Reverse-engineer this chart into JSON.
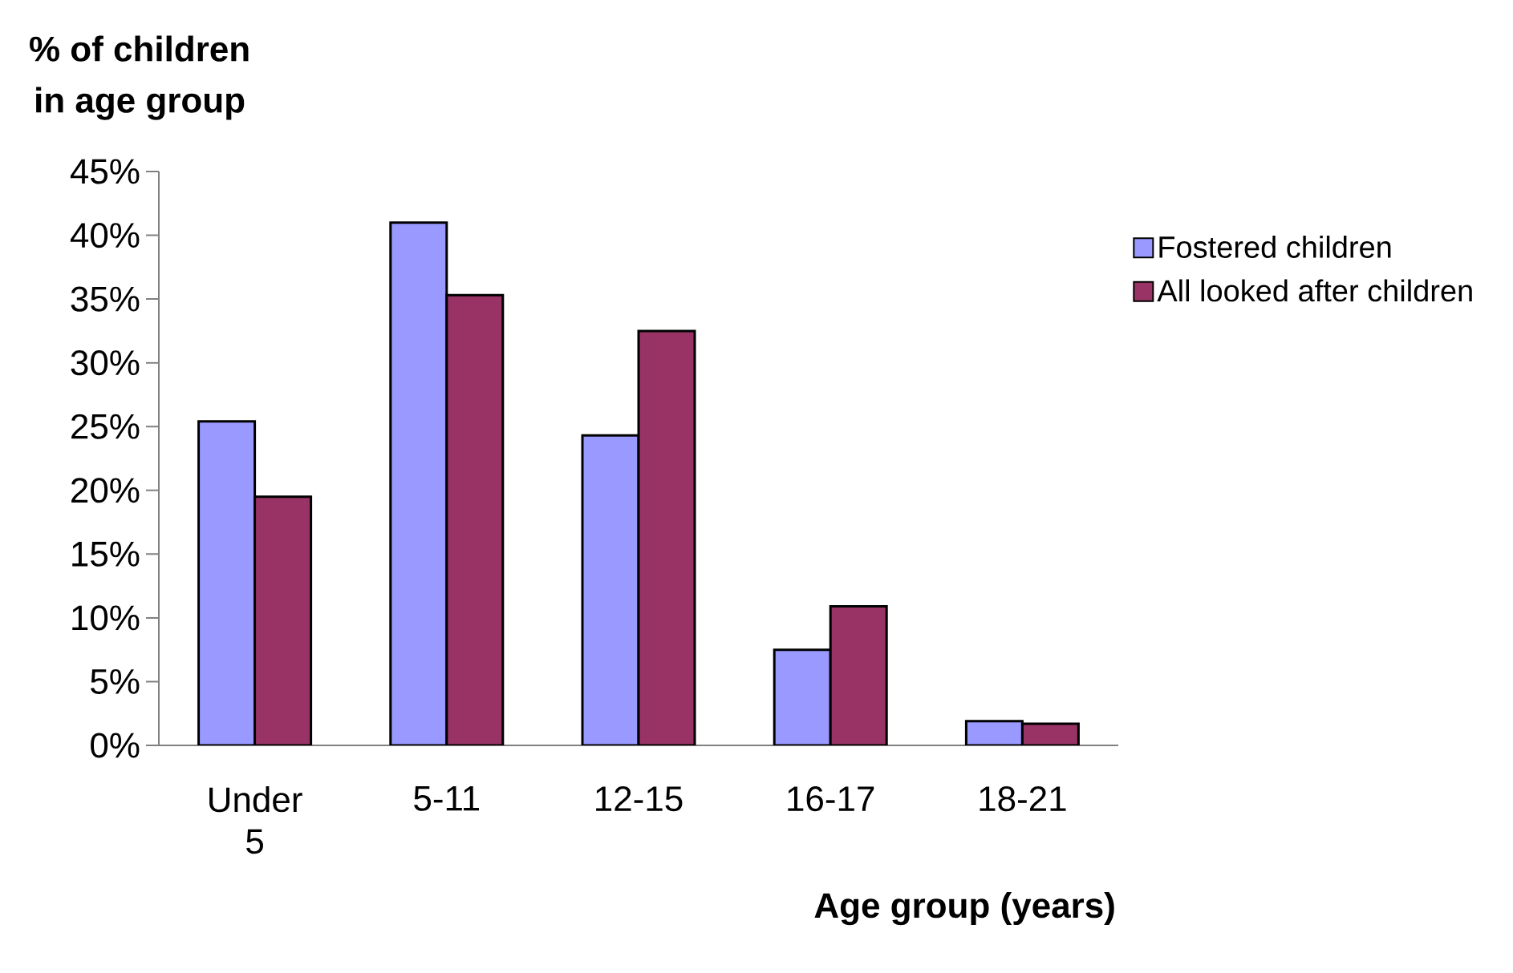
{
  "chart_data": {
    "type": "bar",
    "xlabel": "Age group (years)",
    "ylabel": "% of children\nin age group",
    "categories": [
      "Under 5",
      "5-11",
      "12-15",
      "16-17",
      "18-21"
    ],
    "series": [
      {
        "name": "Fostered children",
        "color": "#9999ff",
        "values": [
          25.4,
          41.0,
          24.3,
          7.5,
          1.9
        ]
      },
      {
        "name": "All looked after children",
        "color": "#993366",
        "values": [
          19.5,
          35.3,
          32.5,
          10.9,
          1.7
        ]
      }
    ],
    "ylim": [
      0,
      45
    ],
    "yticks": [
      {
        "value": 0,
        "label": "0%"
      },
      {
        "value": 5,
        "label": "5%"
      },
      {
        "value": 10,
        "label": "10%"
      },
      {
        "value": 15,
        "label": "15%"
      },
      {
        "value": 20,
        "label": "20%"
      },
      {
        "value": 25,
        "label": "25%"
      },
      {
        "value": 30,
        "label": "30%"
      },
      {
        "value": 35,
        "label": "35%"
      },
      {
        "value": 40,
        "label": "40%"
      },
      {
        "value": 45,
        "label": "45%"
      }
    ],
    "grid": false,
    "legend": "right"
  }
}
